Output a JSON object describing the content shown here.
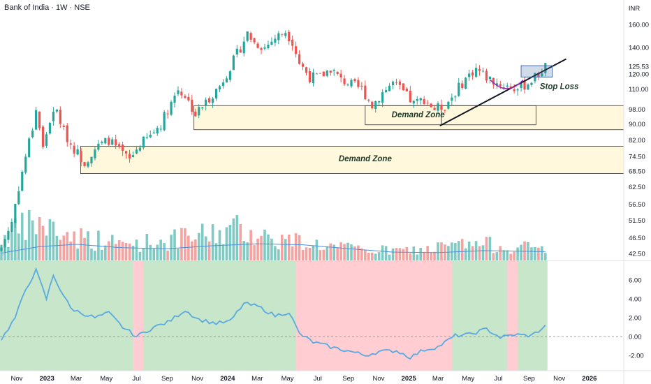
{
  "header": {
    "title": "Bank of India · 1W · NSE",
    "currency": "INR"
  },
  "annotations": {
    "demand_zone_upper": "Demand Zone",
    "demand_zone_lower": "Demand Zone",
    "stop_loss": "Stop Loss"
  },
  "colors": {
    "up": "#26a69a",
    "down": "#ef5350",
    "volume_up": "#7fcbc4",
    "volume_down": "#f4a3a1",
    "ma_line": "#4a90e2",
    "osc_line": "#5aa9e0",
    "osc_pos_bg": "#c8e6c9",
    "osc_neg_bg": "#ffcdd2",
    "zone_fill": "#fff8dc",
    "trendline": "#131722",
    "arc": "#9c27b0",
    "box": "#4a6fa5"
  },
  "chart_data": [
    {
      "type": "candlestick",
      "title": "Bank of India · 1W · NSE",
      "currency": "INR",
      "y_scale": "log",
      "y_ticks": [
        "160.00",
        "140.00",
        "125.53",
        "120.00",
        "110.00",
        "98.00",
        "90.00",
        "82.00",
        "74.50",
        "68.50",
        "62.50",
        "56.50",
        "51.50",
        "46.50",
        "42.50"
      ],
      "y_tick_values": [
        160,
        140,
        125.53,
        120,
        110,
        98,
        90,
        82,
        74.5,
        68.5,
        62.5,
        56.5,
        51.5,
        46.5,
        42.5
      ],
      "last_price": 125.53,
      "x_ticks": [
        "Nov",
        "2023",
        "Mar",
        "May",
        "Jul",
        "Sep",
        "Nov",
        "2024",
        "Mar",
        "May",
        "Jul",
        "Sep",
        "Nov",
        "2025",
        "Mar",
        "May",
        "Jul",
        "Sep",
        "Nov",
        "2026"
      ],
      "x_ticks_bold": [
        "2023",
        "2024",
        "2025",
        "2026"
      ],
      "price_anchors": [
        [
          "2022-10-01",
          44
        ],
        [
          "2022-10-22",
          51
        ],
        [
          "2022-11-12",
          68
        ],
        [
          "2022-12-03",
          88
        ],
        [
          "2022-12-10",
          98
        ],
        [
          "2022-12-24",
          78
        ],
        [
          "2023-01-07",
          92
        ],
        [
          "2023-01-21",
          97
        ],
        [
          "2023-02-04",
          86
        ],
        [
          "2023-02-18",
          80
        ],
        [
          "2023-03-04",
          76
        ],
        [
          "2023-03-18",
          72
        ],
        [
          "2023-04-08",
          78
        ],
        [
          "2023-05-06",
          82
        ],
        [
          "2023-05-27",
          77
        ],
        [
          "2023-06-17",
          73
        ],
        [
          "2023-07-08",
          80
        ],
        [
          "2023-07-29",
          84
        ],
        [
          "2023-08-19",
          90
        ],
        [
          "2023-09-09",
          102
        ],
        [
          "2023-09-23",
          110
        ],
        [
          "2023-10-07",
          106
        ],
        [
          "2023-10-28",
          95
        ],
        [
          "2023-11-18",
          102
        ],
        [
          "2023-12-16",
          112
        ],
        [
          "2024-01-06",
          125
        ],
        [
          "2024-01-27",
          140
        ],
        [
          "2024-02-10",
          152
        ],
        [
          "2024-02-24",
          144
        ],
        [
          "2024-03-16",
          140
        ],
        [
          "2024-04-06",
          148
        ],
        [
          "2024-04-27",
          154
        ],
        [
          "2024-05-11",
          145
        ],
        [
          "2024-05-25",
          128
        ],
        [
          "2024-06-15",
          118
        ],
        [
          "2024-07-06",
          118
        ],
        [
          "2024-07-27",
          124
        ],
        [
          "2024-08-17",
          116
        ],
        [
          "2024-09-07",
          113
        ],
        [
          "2024-09-28",
          110
        ],
        [
          "2024-10-19",
          100
        ],
        [
          "2024-11-09",
          108
        ],
        [
          "2024-11-30",
          114
        ],
        [
          "2024-12-21",
          108
        ],
        [
          "2025-01-11",
          101
        ],
        [
          "2025-02-01",
          104
        ],
        [
          "2025-02-22",
          98
        ],
        [
          "2025-03-15",
          100
        ],
        [
          "2025-04-05",
          108
        ],
        [
          "2025-04-26",
          117
        ],
        [
          "2025-05-17",
          124
        ],
        [
          "2025-06-07",
          118
        ],
        [
          "2025-06-28",
          114
        ],
        [
          "2025-07-19",
          112
        ],
        [
          "2025-08-09",
          110
        ],
        [
          "2025-08-30",
          114
        ],
        [
          "2025-09-20",
          120
        ],
        [
          "2025-10-04",
          125.53
        ]
      ],
      "demand_zones": [
        {
          "label": "Demand Zone",
          "from": "2023-10-25",
          "to": "2026-03-31",
          "low": 87,
          "high": 100
        },
        {
          "label": "Demand Zone",
          "from": "2023-03-10",
          "to": "2026-03-31",
          "low": 67.5,
          "high": 79
        }
      ],
      "inner_zones": [
        {
          "from": "2024-10-05",
          "to": "2025-03-08",
          "low": 89.5,
          "high": 100
        },
        {
          "from": "2025-03-08",
          "to": "2025-09-15",
          "low": 89.5,
          "high": 100
        }
      ],
      "trendline": {
        "from": [
          "2025-03-05",
          89
        ],
        "to": [
          "2025-11-15",
          131
        ]
      },
      "stop_loss_box": {
        "from": "2025-08-16",
        "to": "2025-10-18",
        "low": 118,
        "high": 126
      },
      "stop_loss_label": "Stop Loss"
    },
    {
      "type": "bar",
      "series_name": "Volume",
      "volume_anchors": [
        [
          "2022-10-01",
          4
        ],
        [
          "2022-12-10",
          7
        ],
        [
          "2023-02-01",
          5
        ],
        [
          "2023-04-01",
          4
        ],
        [
          "2023-06-01",
          3
        ],
        [
          "2023-08-01",
          3.5
        ],
        [
          "2023-10-01",
          4
        ],
        [
          "2023-12-01",
          5
        ],
        [
          "2024-02-01",
          6
        ],
        [
          "2024-04-01",
          4
        ],
        [
          "2024-06-01",
          3.5
        ],
        [
          "2024-08-01",
          2.5
        ],
        [
          "2024-10-01",
          2
        ],
        [
          "2024-12-01",
          1.8
        ],
        [
          "2025-02-01",
          2
        ],
        [
          "2025-04-01",
          2.8
        ],
        [
          "2025-06-01",
          3
        ],
        [
          "2025-08-01",
          2.5
        ],
        [
          "2025-10-04",
          2.3
        ]
      ],
      "volume_ma_anchors": [
        [
          "2022-10-01",
          1.5
        ],
        [
          "2022-12-15",
          2.8
        ],
        [
          "2023-03-01",
          3.3
        ],
        [
          "2023-06-01",
          2.6
        ],
        [
          "2023-09-01",
          2.4
        ],
        [
          "2023-12-01",
          3
        ],
        [
          "2024-03-01",
          3.4
        ],
        [
          "2024-06-01",
          3.2
        ],
        [
          "2024-09-01",
          2.4
        ],
        [
          "2024-12-01",
          1.7
        ],
        [
          "2025-03-01",
          1.6
        ],
        [
          "2025-06-01",
          2
        ],
        [
          "2025-10-04",
          1.8
        ]
      ]
    },
    {
      "type": "line",
      "y_ticks": [
        "6.00",
        "4.00",
        "2.00",
        "0.00",
        "-2.00"
      ],
      "y_tick_values": [
        6,
        4,
        2,
        0,
        -2
      ],
      "osc_anchors": [
        [
          "2022-10-01",
          -0.3
        ],
        [
          "2022-10-29",
          2
        ],
        [
          "2022-11-19",
          5
        ],
        [
          "2022-12-10",
          7
        ],
        [
          "2022-12-31",
          4
        ],
        [
          "2023-01-14",
          6.5
        ],
        [
          "2023-01-28",
          5
        ],
        [
          "2023-02-18",
          3
        ],
        [
          "2023-03-11",
          2.5
        ],
        [
          "2023-04-08",
          2
        ],
        [
          "2023-05-06",
          2.5
        ],
        [
          "2023-06-03",
          1
        ],
        [
          "2023-07-01",
          0
        ],
        [
          "2023-08-05",
          1
        ],
        [
          "2023-09-02",
          1.5
        ],
        [
          "2023-10-07",
          2.8
        ],
        [
          "2023-11-04",
          1.8
        ],
        [
          "2023-12-09",
          1.4
        ],
        [
          "2024-01-06",
          1.6
        ],
        [
          "2024-02-03",
          3.5
        ],
        [
          "2024-03-02",
          3.2
        ],
        [
          "2024-04-06",
          2.2
        ],
        [
          "2024-05-04",
          2.6
        ],
        [
          "2024-05-25",
          0.3
        ],
        [
          "2024-06-22",
          -0.6
        ],
        [
          "2024-08-03",
          -1.2
        ],
        [
          "2024-09-07",
          -1.6
        ],
        [
          "2024-10-05",
          -2
        ],
        [
          "2024-11-02",
          -1.6
        ],
        [
          "2024-12-07",
          -1.5
        ],
        [
          "2025-01-04",
          -2.2
        ],
        [
          "2025-02-01",
          -1.4
        ],
        [
          "2025-03-01",
          -1.1
        ],
        [
          "2025-04-05",
          0.1
        ],
        [
          "2025-05-03",
          0.2
        ],
        [
          "2025-06-07",
          0.8
        ],
        [
          "2025-07-05",
          -0.1
        ],
        [
          "2025-08-02",
          0.2
        ],
        [
          "2025-09-06",
          0.1
        ],
        [
          "2025-10-04",
          1.1
        ]
      ],
      "negative_ranges": [
        [
          "2023-06-24",
          "2023-07-15"
        ],
        [
          "2024-05-18",
          "2025-03-29"
        ],
        [
          "2025-07-19",
          "2025-08-09"
        ]
      ]
    }
  ]
}
